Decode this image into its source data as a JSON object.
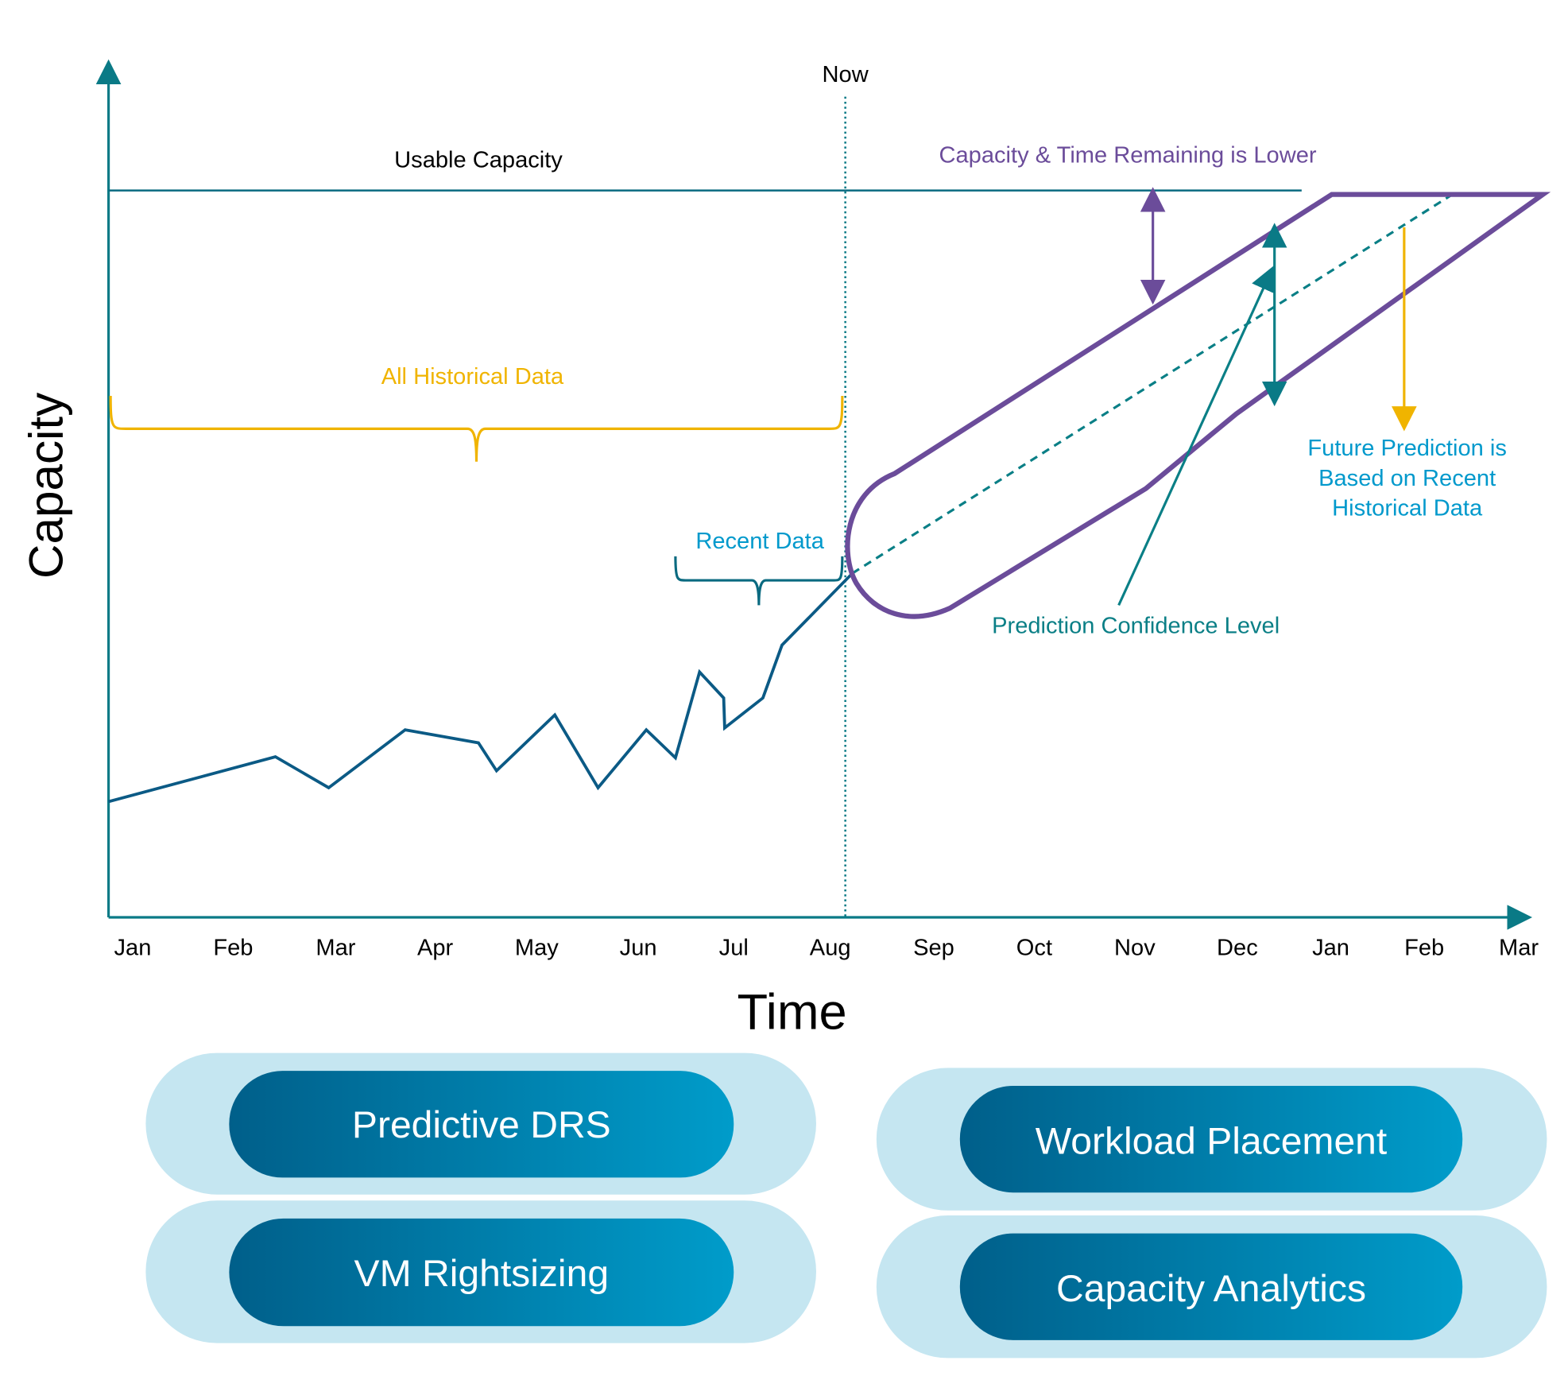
{
  "axes": {
    "y_label": "Capacity",
    "x_label": "Time",
    "months": [
      "Jan",
      "Feb",
      "Mar",
      "Apr",
      "May",
      "Jun",
      "Jul",
      "Aug",
      "Sep",
      "Oct",
      "Nov",
      "Dec",
      "Jan",
      "Feb",
      "Mar"
    ]
  },
  "annotations": {
    "now": "Now",
    "usable_capacity": "Usable Capacity",
    "capacity_time_lower": "Capacity & Time Remaining is Lower",
    "all_historical": "All Historical Data",
    "recent_data": "Recent Data",
    "confidence": "Prediction Confidence Level",
    "future_prediction": [
      "Future Prediction is",
      "Based on Recent",
      "Historical Data"
    ]
  },
  "features": [
    {
      "label": "Predictive DRS"
    },
    {
      "label": "VM Rightsizing"
    },
    {
      "label": "Workload Placement"
    },
    {
      "label": "Capacity Analytics"
    }
  ],
  "colors": {
    "axis": "#0a7a86",
    "data_line": "#0b5a85",
    "purple": "#6b4c9a",
    "yellow": "#f0b400",
    "teal": "#0a7f86",
    "blue_text": "#0099cc",
    "pill_outer": "#c5e6f1",
    "pill_gradient_start": "#005f8a",
    "pill_gradient_end": "#009cca"
  }
}
